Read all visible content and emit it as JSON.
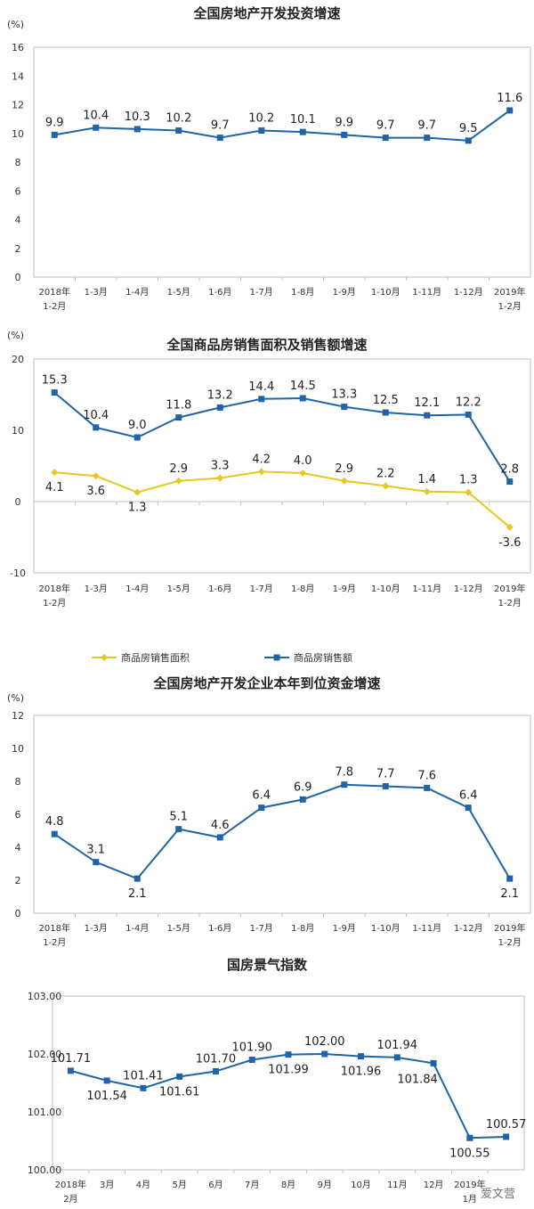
{
  "colors": {
    "blue": "#1f64a8",
    "yellow": "#e6c81e",
    "axis": "#bfbfbf"
  },
  "chart_data": [
    {
      "type": "line",
      "title": "全国房地产开发投资增速",
      "unit": "(%)",
      "ylim": [
        0,
        16
      ],
      "yticks": [
        "0",
        "2",
        "4",
        "6",
        "8",
        "10",
        "12",
        "14",
        "16"
      ],
      "categories": [
        [
          "2018年",
          "1-2月"
        ],
        [
          "1-3月"
        ],
        [
          "1-4月"
        ],
        [
          "1-5月"
        ],
        [
          "1-6月"
        ],
        [
          "1-7月"
        ],
        [
          "1-8月"
        ],
        [
          "1-9月"
        ],
        [
          "1-10月"
        ],
        [
          "1-11月"
        ],
        [
          "1-12月"
        ],
        [
          "2019年",
          "1-2月"
        ]
      ],
      "series": [
        {
          "color": "#1f64a8",
          "marker": "square",
          "values": [
            9.9,
            10.4,
            10.3,
            10.2,
            9.7,
            10.2,
            10.1,
            9.9,
            9.7,
            9.7,
            9.5,
            11.6
          ],
          "labels": [
            "9.9",
            "10.4",
            "10.3",
            "10.2",
            "9.7",
            "10.2",
            "10.1",
            "9.9",
            "9.7",
            "9.7",
            "9.5",
            "11.6"
          ]
        }
      ],
      "grid": false
    },
    {
      "type": "line",
      "title": "全国商品房销售面积及销售额增速",
      "unit": "(%)",
      "ylim": [
        -10,
        20
      ],
      "yticks": [
        "-10",
        "0",
        "10",
        "20"
      ],
      "categories": [
        [
          "2018年",
          "1-2月"
        ],
        [
          "1-3月"
        ],
        [
          "1-4月"
        ],
        [
          "1-5月"
        ],
        [
          "1-6月"
        ],
        [
          "1-7月"
        ],
        [
          "1-8月"
        ],
        [
          "1-9月"
        ],
        [
          "1-10月"
        ],
        [
          "1-11月"
        ],
        [
          "1-12月"
        ],
        [
          "2019年",
          "1-2月"
        ]
      ],
      "series": [
        {
          "name": "商品房销售面积",
          "color": "#e6c81e",
          "marker": "diamond",
          "values": [
            4.1,
            3.6,
            1.3,
            2.9,
            3.3,
            4.2,
            4.0,
            2.9,
            2.2,
            1.4,
            1.3,
            -3.6
          ],
          "labels": [
            "4.1",
            "3.6",
            "1.3",
            "2.9",
            "3.3",
            "4.2",
            "4.0",
            "2.9",
            "2.2",
            "1.4",
            "1.3",
            "-3.6"
          ]
        },
        {
          "name": "商品房销售额",
          "color": "#1f64a8",
          "marker": "square",
          "values": [
            15.3,
            10.4,
            9.0,
            11.8,
            13.2,
            14.4,
            14.5,
            13.3,
            12.5,
            12.1,
            12.2,
            2.8
          ],
          "labels": [
            "15.3",
            "10.4",
            "9.0",
            "11.8",
            "13.2",
            "14.4",
            "14.5",
            "13.3",
            "12.5",
            "12.1",
            "12.2",
            "2.8"
          ]
        }
      ],
      "legend": "bottom",
      "grid": false
    },
    {
      "type": "line",
      "title": "全国房地产开发企业本年到位资金增速",
      "unit": "(%)",
      "ylim": [
        0,
        12
      ],
      "yticks": [
        "0",
        "2",
        "4",
        "6",
        "8",
        "10",
        "12"
      ],
      "categories": [
        [
          "2018年",
          "1-2月"
        ],
        [
          "1-3月"
        ],
        [
          "1-4月"
        ],
        [
          "1-5月"
        ],
        [
          "1-6月"
        ],
        [
          "1-7月"
        ],
        [
          "1-8月"
        ],
        [
          "1-9月"
        ],
        [
          "1-10月"
        ],
        [
          "1-11月"
        ],
        [
          "1-12月"
        ],
        [
          "2019年",
          "1-2月"
        ]
      ],
      "series": [
        {
          "color": "#1f64a8",
          "marker": "square",
          "values": [
            4.8,
            3.1,
            2.1,
            5.1,
            4.6,
            6.4,
            6.9,
            7.8,
            7.7,
            7.6,
            6.4,
            2.1
          ],
          "labels": [
            "4.8",
            "3.1",
            "2.1",
            "5.1",
            "4.6",
            "6.4",
            "6.9",
            "7.8",
            "7.7",
            "7.6",
            "6.4",
            "2.1"
          ]
        }
      ],
      "grid": false
    },
    {
      "type": "line",
      "title": "国房景气指数",
      "unit": "",
      "ylim": [
        100,
        103
      ],
      "yticks": [
        "100.00",
        "101.00",
        "102.00",
        "103.00"
      ],
      "categories": [
        [
          "2018年",
          "2月"
        ],
        [
          "3月"
        ],
        [
          "4月"
        ],
        [
          "5月"
        ],
        [
          "6月"
        ],
        [
          "7月"
        ],
        [
          "8月"
        ],
        [
          "9月"
        ],
        [
          "10月"
        ],
        [
          "11月"
        ],
        [
          "12月"
        ],
        [
          "2019年",
          "1月"
        ],
        [
          ""
        ]
      ],
      "series": [
        {
          "color": "#1f64a8",
          "marker": "square",
          "values": [
            101.71,
            101.54,
            101.41,
            101.61,
            101.7,
            101.9,
            101.99,
            102.0,
            101.96,
            101.94,
            101.84,
            100.55,
            100.57
          ],
          "labels": [
            "101.71",
            "101.54",
            "101.41",
            "101.61",
            "101.70",
            "101.90",
            "101.99",
            "102.00",
            "101.96",
            "101.94",
            "101.84",
            "100.55",
            "100.57"
          ]
        }
      ],
      "grid": false
    }
  ],
  "watermark": "爱文营"
}
